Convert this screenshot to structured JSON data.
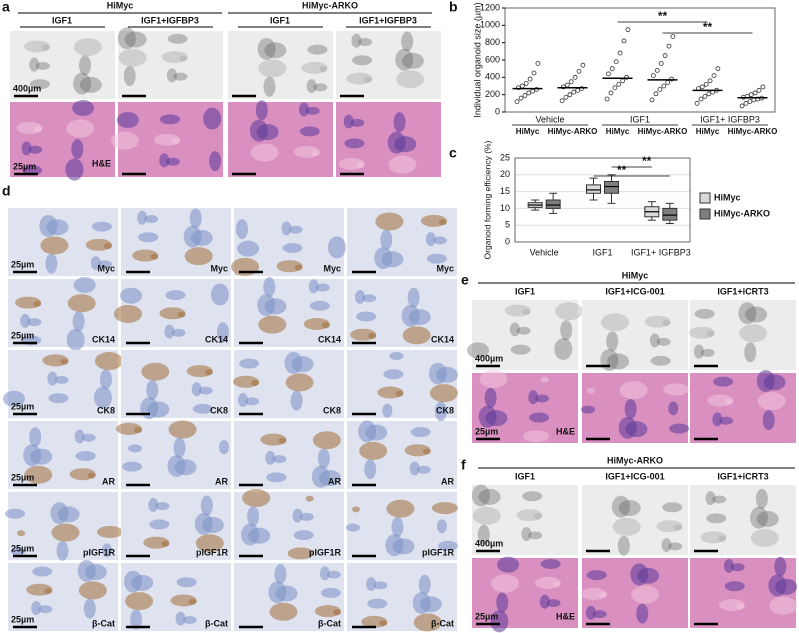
{
  "panel_a": {
    "letter": "a",
    "groups": [
      "HiMyc",
      "HiMyc-ARKO"
    ],
    "columns": [
      "IGF1",
      "IGF1+IGFBP3",
      "IGF1",
      "IGF1+IGFBP3"
    ],
    "scale_top": "400µm",
    "scale_bottom": "25µm",
    "stain": "H&E"
  },
  "panel_d": {
    "letter": "d",
    "rows": [
      "Myc",
      "CK14",
      "CK8",
      "AR",
      "pIGF1R",
      "β-Cat"
    ],
    "scale": "25µm"
  },
  "panel_e": {
    "letter": "e",
    "title": "HiMyc",
    "columns": [
      "IGF1",
      "IGF1+ICG-001",
      "IGF1+iCRT3"
    ],
    "scale_top": "400µm",
    "scale_bottom": "25µm",
    "stain": "H&E"
  },
  "panel_f": {
    "letter": "f",
    "title": "HiMyc-ARKO",
    "columns": [
      "IGF1",
      "IGF1+ICG-001",
      "IGF1+iCRT3"
    ],
    "scale_top": "400µm",
    "scale_bottom": "25µm",
    "stain": "H&E"
  },
  "chart_data": [
    {
      "type": "strip",
      "letter": "b",
      "y_label": "Individual organoid size (µm)",
      "ylim": [
        0,
        1200
      ],
      "yticks": [
        0,
        200,
        400,
        600,
        800,
        1000,
        1200
      ],
      "groups": [
        "Vehicle",
        "IGF1",
        "IGF1+ IGFBP3"
      ],
      "categories": [
        "HiMyc",
        "HiMyc-ARKO",
        "HiMyc",
        "HiMyc-ARKO",
        "HiMyc",
        "HiMyc-ARKO"
      ],
      "color": "#333333",
      "points": [
        [
          120,
          160,
          190,
          220,
          240,
          260,
          280,
          300,
          330,
          380,
          450,
          560
        ],
        [
          130,
          170,
          200,
          230,
          250,
          270,
          290,
          310,
          350,
          400,
          470,
          540
        ],
        [
          150,
          220,
          280,
          320,
          360,
          400,
          440,
          500,
          580,
          680,
          820,
          950
        ],
        [
          140,
          210,
          260,
          300,
          340,
          380,
          420,
          480,
          560,
          650,
          760,
          870
        ],
        [
          100,
          150,
          180,
          210,
          230,
          250,
          270,
          290,
          320,
          360,
          420,
          500
        ],
        [
          70,
          100,
          120,
          140,
          150,
          160,
          170,
          180,
          200,
          220,
          250,
          290
        ]
      ],
      "means": [
        270,
        280,
        390,
        370,
        250,
        165
      ],
      "annotations": [
        "**",
        "**"
      ]
    },
    {
      "type": "box",
      "letter": "c",
      "y_label": "Organoid forming efficiency (%)",
      "ylim": [
        0,
        25
      ],
      "yticks": [
        0,
        5,
        10,
        15,
        20,
        25
      ],
      "grid": true,
      "legend": "right",
      "categories": [
        "Vehicle",
        "IGF1",
        "IGF1+ IGFBP3"
      ],
      "series": [
        {
          "name": "HiMyc",
          "color": "#d9d9d9",
          "min": [
            9.5,
            12.5,
            6.5
          ],
          "q1": [
            10.3,
            14.5,
            7.5
          ],
          "median": [
            11,
            15.5,
            9
          ],
          "q3": [
            11.7,
            17,
            10.5
          ],
          "max": [
            12.5,
            19,
            12
          ]
        },
        {
          "name": "HiMyc-ARKO",
          "color": "#7f7f7f",
          "min": [
            8.5,
            11.5,
            5.5
          ],
          "q1": [
            10,
            14.5,
            6.5
          ],
          "median": [
            11,
            16.5,
            8
          ],
          "q3": [
            12.5,
            18,
            10
          ],
          "max": [
            14.5,
            20,
            11.5
          ]
        }
      ],
      "annotations": [
        "**",
        "**"
      ]
    }
  ]
}
